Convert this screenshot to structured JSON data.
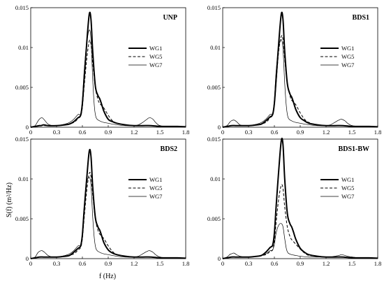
{
  "figure": {
    "ylabel": "S(f) (m²/Hz)",
    "xlabel": "f (Hz)"
  },
  "chart_data": [
    {
      "type": "line",
      "title": "UNP",
      "xlim": [
        0,
        1.8
      ],
      "ylim": [
        0,
        0.015
      ],
      "xticks": [
        "0",
        "0.3",
        "0.6",
        "0.9",
        "1.2",
        "1.5",
        "1.8"
      ],
      "yticks": [
        "0",
        "0.005",
        "0.01",
        "0.015"
      ],
      "legend": "right-middle",
      "series": [
        {
          "name": "WG1",
          "style": "thick-solid",
          "x": [
            0,
            0.05,
            0.1,
            0.12,
            0.15,
            0.2,
            0.3,
            0.4,
            0.45,
            0.5,
            0.55,
            0.58,
            0.6,
            0.62,
            0.65,
            0.68,
            0.7,
            0.72,
            0.75,
            0.78,
            0.8,
            0.82,
            0.85,
            0.9,
            0.95,
            1.0,
            1.1,
            1.2,
            1.3,
            1.4,
            1.5,
            1.6,
            1.7,
            1.8
          ],
          "y": [
            0,
            0.0001,
            0.0002,
            0.0002,
            0.0003,
            0.0002,
            0.0002,
            0.0003,
            0.0004,
            0.0007,
            0.0012,
            0.0015,
            0.003,
            0.006,
            0.0105,
            0.0142,
            0.0135,
            0.0095,
            0.0052,
            0.004,
            0.0036,
            0.003,
            0.002,
            0.001,
            0.0007,
            0.0005,
            0.0003,
            0.0002,
            0.0002,
            0.0002,
            0.0001,
            0.0001,
            0.0001,
            5e-05
          ]
        },
        {
          "name": "WG5",
          "style": "dashed",
          "x": [
            0,
            0.05,
            0.1,
            0.15,
            0.2,
            0.3,
            0.4,
            0.5,
            0.55,
            0.58,
            0.6,
            0.62,
            0.65,
            0.68,
            0.7,
            0.72,
            0.75,
            0.78,
            0.8,
            0.85,
            0.9,
            0.95,
            1.0,
            1.1,
            1.2,
            1.3,
            1.4,
            1.5,
            1.6,
            1.7,
            1.8
          ],
          "y": [
            0,
            0.0001,
            0.0002,
            0.0002,
            0.0002,
            0.0002,
            0.0003,
            0.0006,
            0.0011,
            0.0014,
            0.0025,
            0.005,
            0.0085,
            0.0108,
            0.0104,
            0.008,
            0.005,
            0.0035,
            0.003,
            0.0024,
            0.0015,
            0.0008,
            0.0005,
            0.0003,
            0.0002,
            0.0002,
            0.0002,
            0.0001,
            0.0001,
            0.0001,
            5e-05
          ]
        },
        {
          "name": "WG7",
          "style": "thin-solid",
          "x": [
            0,
            0.05,
            0.08,
            0.1,
            0.13,
            0.16,
            0.2,
            0.25,
            0.3,
            0.4,
            0.45,
            0.5,
            0.55,
            0.58,
            0.6,
            0.62,
            0.65,
            0.68,
            0.7,
            0.72,
            0.74,
            0.76,
            0.8,
            0.85,
            0.9,
            1.0,
            1.1,
            1.2,
            1.25,
            1.3,
            1.35,
            1.38,
            1.42,
            1.45,
            1.5,
            1.6,
            1.7,
            1.8
          ],
          "y": [
            0,
            0.0002,
            0.0007,
            0.001,
            0.0012,
            0.0009,
            0.0004,
            0.0002,
            0.0002,
            0.0004,
            0.0006,
            0.001,
            0.0016,
            0.0017,
            0.0035,
            0.007,
            0.0105,
            0.0122,
            0.011,
            0.006,
            0.0025,
            0.0012,
            0.0008,
            0.0006,
            0.0005,
            0.0003,
            0.0002,
            0.0002,
            0.0003,
            0.0006,
            0.001,
            0.0012,
            0.001,
            0.0006,
            0.0002,
            0.0001,
            0.0001,
            5e-05
          ]
        }
      ]
    },
    {
      "type": "line",
      "title": "BDS1",
      "xlim": [
        0,
        1.8
      ],
      "ylim": [
        0,
        0.015
      ],
      "xticks": [
        "0",
        "0.3",
        "0.6",
        "0.9",
        "1.2",
        "1.5",
        "1.8"
      ],
      "yticks": [
        "0",
        "0.005",
        "0.01",
        "0.015"
      ],
      "legend": "right-middle",
      "series": [
        {
          "name": "WG1",
          "style": "thick-solid",
          "x": [
            0,
            0.05,
            0.1,
            0.15,
            0.2,
            0.3,
            0.4,
            0.45,
            0.5,
            0.55,
            0.58,
            0.6,
            0.62,
            0.65,
            0.68,
            0.7,
            0.72,
            0.75,
            0.78,
            0.8,
            0.82,
            0.85,
            0.9,
            0.95,
            1.0,
            1.1,
            1.2,
            1.3,
            1.4,
            1.5,
            1.6,
            1.7,
            1.8
          ],
          "y": [
            0,
            0.0001,
            0.0002,
            0.0002,
            0.0002,
            0.0002,
            0.0003,
            0.0004,
            0.0008,
            0.0013,
            0.0016,
            0.003,
            0.006,
            0.0105,
            0.0142,
            0.0135,
            0.0095,
            0.0055,
            0.0042,
            0.0038,
            0.0032,
            0.0022,
            0.0012,
            0.0008,
            0.0005,
            0.0003,
            0.0002,
            0.0002,
            0.0002,
            0.0001,
            0.0001,
            0.0001,
            5e-05
          ]
        },
        {
          "name": "WG5",
          "style": "dashed",
          "x": [
            0,
            0.05,
            0.1,
            0.15,
            0.2,
            0.3,
            0.4,
            0.5,
            0.55,
            0.58,
            0.6,
            0.62,
            0.65,
            0.68,
            0.7,
            0.72,
            0.75,
            0.78,
            0.8,
            0.85,
            0.9,
            0.95,
            1.0,
            1.1,
            1.2,
            1.3,
            1.4,
            1.5,
            1.6,
            1.7,
            1.8
          ],
          "y": [
            0,
            0.0001,
            0.0002,
            0.0002,
            0.0002,
            0.0002,
            0.0003,
            0.0006,
            0.0012,
            0.0015,
            0.0028,
            0.0055,
            0.0095,
            0.0114,
            0.011,
            0.0085,
            0.0055,
            0.004,
            0.0034,
            0.0028,
            0.0018,
            0.001,
            0.0006,
            0.0003,
            0.0002,
            0.0002,
            0.0002,
            0.0001,
            0.0001,
            0.0001,
            5e-05
          ]
        },
        {
          "name": "WG7",
          "style": "thin-solid",
          "x": [
            0,
            0.05,
            0.08,
            0.1,
            0.13,
            0.16,
            0.2,
            0.25,
            0.3,
            0.4,
            0.45,
            0.5,
            0.55,
            0.58,
            0.6,
            0.62,
            0.65,
            0.68,
            0.7,
            0.72,
            0.74,
            0.76,
            0.8,
            0.85,
            0.9,
            1.0,
            1.1,
            1.2,
            1.25,
            1.3,
            1.35,
            1.38,
            1.42,
            1.45,
            1.5,
            1.6,
            1.7,
            1.8
          ],
          "y": [
            0,
            0.0002,
            0.0006,
            0.0008,
            0.0009,
            0.0007,
            0.0003,
            0.0002,
            0.0002,
            0.0004,
            0.0006,
            0.001,
            0.0016,
            0.0018,
            0.0035,
            0.007,
            0.01,
            0.011,
            0.0098,
            0.0055,
            0.0025,
            0.0012,
            0.0008,
            0.0006,
            0.0005,
            0.0003,
            0.0002,
            0.0002,
            0.0003,
            0.0006,
            0.0009,
            0.001,
            0.0008,
            0.0005,
            0.0002,
            0.0001,
            0.0001,
            5e-05
          ]
        }
      ]
    },
    {
      "type": "line",
      "title": "BDS2",
      "xlim": [
        0,
        1.8
      ],
      "ylim": [
        0,
        0.015
      ],
      "xticks": [
        "0",
        "0.3",
        "0.6",
        "0.9",
        "1.2",
        "1.5",
        "1.8"
      ],
      "yticks": [
        "0",
        "0.005",
        "0.01",
        "0.015"
      ],
      "legend": "right-middle",
      "series": [
        {
          "name": "WG1",
          "style": "thick-solid",
          "x": [
            0,
            0.05,
            0.1,
            0.15,
            0.2,
            0.3,
            0.4,
            0.45,
            0.5,
            0.55,
            0.58,
            0.6,
            0.62,
            0.65,
            0.68,
            0.7,
            0.72,
            0.75,
            0.78,
            0.8,
            0.82,
            0.85,
            0.9,
            0.95,
            1.0,
            1.1,
            1.2,
            1.3,
            1.4,
            1.5,
            1.6,
            1.7,
            1.8
          ],
          "y": [
            0,
            0.0001,
            0.0002,
            0.0002,
            0.0002,
            0.0002,
            0.0003,
            0.0004,
            0.0008,
            0.0013,
            0.0016,
            0.003,
            0.006,
            0.01,
            0.0135,
            0.0128,
            0.009,
            0.0052,
            0.004,
            0.0036,
            0.003,
            0.002,
            0.0011,
            0.0007,
            0.0005,
            0.0003,
            0.0002,
            0.0002,
            0.0002,
            0.0001,
            0.0001,
            0.0001,
            5e-05
          ]
        },
        {
          "name": "WG5",
          "style": "dashed",
          "x": [
            0,
            0.05,
            0.1,
            0.15,
            0.2,
            0.3,
            0.4,
            0.5,
            0.55,
            0.58,
            0.6,
            0.62,
            0.65,
            0.68,
            0.7,
            0.72,
            0.75,
            0.78,
            0.8,
            0.85,
            0.9,
            0.95,
            1.0,
            1.1,
            1.2,
            1.3,
            1.4,
            1.5,
            1.6,
            1.7,
            1.8
          ],
          "y": [
            0,
            0.0001,
            0.0002,
            0.0002,
            0.0002,
            0.0002,
            0.0003,
            0.0006,
            0.0011,
            0.0014,
            0.0025,
            0.005,
            0.0085,
            0.0107,
            0.0103,
            0.008,
            0.005,
            0.0036,
            0.0031,
            0.0025,
            0.0016,
            0.0009,
            0.0005,
            0.0003,
            0.0002,
            0.0002,
            0.0002,
            0.0001,
            0.0001,
            0.0001,
            5e-05
          ]
        },
        {
          "name": "WG7",
          "style": "thin-solid",
          "x": [
            0,
            0.05,
            0.08,
            0.1,
            0.13,
            0.16,
            0.2,
            0.25,
            0.3,
            0.4,
            0.45,
            0.5,
            0.55,
            0.58,
            0.6,
            0.62,
            0.65,
            0.68,
            0.7,
            0.72,
            0.74,
            0.76,
            0.8,
            0.85,
            0.9,
            1.0,
            1.1,
            1.2,
            1.25,
            1.3,
            1.35,
            1.38,
            1.42,
            1.45,
            1.5,
            1.6,
            1.7,
            1.8
          ],
          "y": [
            0,
            0.0002,
            0.0007,
            0.0009,
            0.001,
            0.0008,
            0.0004,
            0.0002,
            0.0002,
            0.0004,
            0.0006,
            0.001,
            0.0016,
            0.0017,
            0.0032,
            0.0065,
            0.0095,
            0.0102,
            0.0092,
            0.0052,
            0.0024,
            0.0012,
            0.0008,
            0.0006,
            0.0005,
            0.0003,
            0.0002,
            0.0002,
            0.0003,
            0.0006,
            0.0009,
            0.001,
            0.0008,
            0.0005,
            0.0002,
            0.0001,
            0.0001,
            5e-05
          ]
        }
      ]
    },
    {
      "type": "line",
      "title": "BDS1-BW",
      "xlim": [
        0,
        1.8
      ],
      "ylim": [
        0,
        0.015
      ],
      "xticks": [
        "0",
        "0.3",
        "0.6",
        "0.9",
        "1.2",
        "1.5",
        "1.8"
      ],
      "yticks": [
        "0",
        "0.005",
        "0.01",
        "0.015"
      ],
      "legend": "right-middle",
      "series": [
        {
          "name": "WG1",
          "style": "thick-solid",
          "x": [
            0,
            0.05,
            0.1,
            0.15,
            0.2,
            0.3,
            0.4,
            0.45,
            0.5,
            0.55,
            0.58,
            0.6,
            0.62,
            0.65,
            0.68,
            0.7,
            0.72,
            0.75,
            0.78,
            0.8,
            0.82,
            0.85,
            0.9,
            0.95,
            1.0,
            1.1,
            1.2,
            1.3,
            1.4,
            1.5,
            1.6,
            1.7,
            1.8
          ],
          "y": [
            0,
            0.0001,
            0.0002,
            0.0002,
            0.0002,
            0.0002,
            0.0003,
            0.0004,
            0.0008,
            0.0014,
            0.0017,
            0.0032,
            0.0065,
            0.011,
            0.0148,
            0.0143,
            0.01,
            0.0057,
            0.0044,
            0.004,
            0.0034,
            0.0024,
            0.0013,
            0.0008,
            0.0005,
            0.0003,
            0.0002,
            0.0002,
            0.0002,
            0.0001,
            0.0001,
            0.0001,
            5e-05
          ]
        },
        {
          "name": "WG5",
          "style": "dashed",
          "x": [
            0,
            0.05,
            0.1,
            0.15,
            0.2,
            0.3,
            0.4,
            0.5,
            0.55,
            0.58,
            0.6,
            0.62,
            0.65,
            0.68,
            0.7,
            0.72,
            0.75,
            0.78,
            0.8,
            0.85,
            0.9,
            0.95,
            1.0,
            1.1,
            1.2,
            1.3,
            1.4,
            1.5,
            1.6,
            1.7,
            1.8
          ],
          "y": [
            0,
            0.0001,
            0.0002,
            0.0002,
            0.0002,
            0.0002,
            0.0003,
            0.0005,
            0.0009,
            0.0011,
            0.0022,
            0.0045,
            0.0075,
            0.0092,
            0.0088,
            0.0065,
            0.004,
            0.0028,
            0.0024,
            0.0018,
            0.0012,
            0.0007,
            0.0004,
            0.0003,
            0.0002,
            0.0002,
            0.0002,
            0.0001,
            0.0001,
            0.0001,
            5e-05
          ]
        },
        {
          "name": "WG7",
          "style": "thin-solid",
          "x": [
            0,
            0.05,
            0.08,
            0.1,
            0.13,
            0.16,
            0.2,
            0.25,
            0.3,
            0.4,
            0.45,
            0.5,
            0.55,
            0.58,
            0.6,
            0.62,
            0.65,
            0.68,
            0.7,
            0.72,
            0.74,
            0.76,
            0.8,
            0.85,
            0.9,
            1.0,
            1.1,
            1.2,
            1.25,
            1.3,
            1.35,
            1.38,
            1.42,
            1.45,
            1.5,
            1.6,
            1.7,
            1.8
          ],
          "y": [
            0,
            0.0002,
            0.0005,
            0.0006,
            0.0007,
            0.0005,
            0.0003,
            0.0002,
            0.0002,
            0.0003,
            0.0004,
            0.0006,
            0.001,
            0.0011,
            0.0018,
            0.0032,
            0.0042,
            0.0044,
            0.004,
            0.0025,
            0.0012,
            0.0007,
            0.0005,
            0.0004,
            0.0003,
            0.0002,
            0.0002,
            0.0002,
            0.0002,
            0.0003,
            0.0004,
            0.0005,
            0.0004,
            0.0003,
            0.0002,
            0.0001,
            0.0001,
            5e-05
          ]
        }
      ]
    }
  ]
}
